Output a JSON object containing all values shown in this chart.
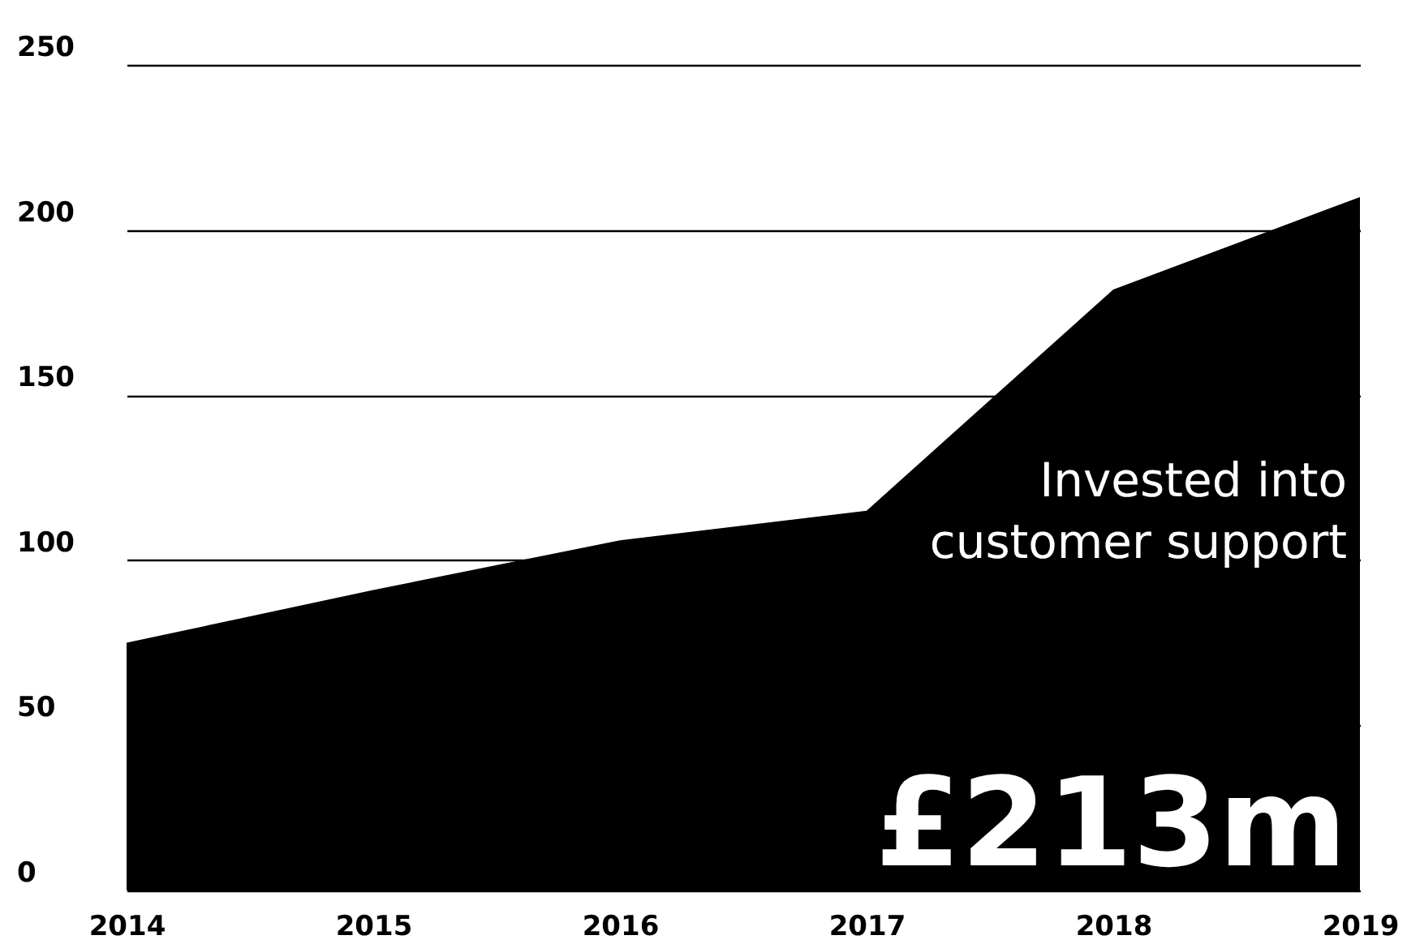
{
  "chart_data": {
    "type": "area",
    "categories": [
      "2014",
      "2015",
      "2016",
      "2017",
      "2018",
      "2019"
    ],
    "series": [
      {
        "color": "#000000",
        "values": [
          75,
          91,
          106,
          115,
          182,
          210
        ]
      }
    ],
    "ylim": [
      0,
      250
    ],
    "yticks": [
      0,
      50,
      100,
      150,
      200,
      250
    ],
    "grid": "y",
    "annotations": [
      "Invested into\ncustomer support",
      "£213m"
    ]
  }
}
